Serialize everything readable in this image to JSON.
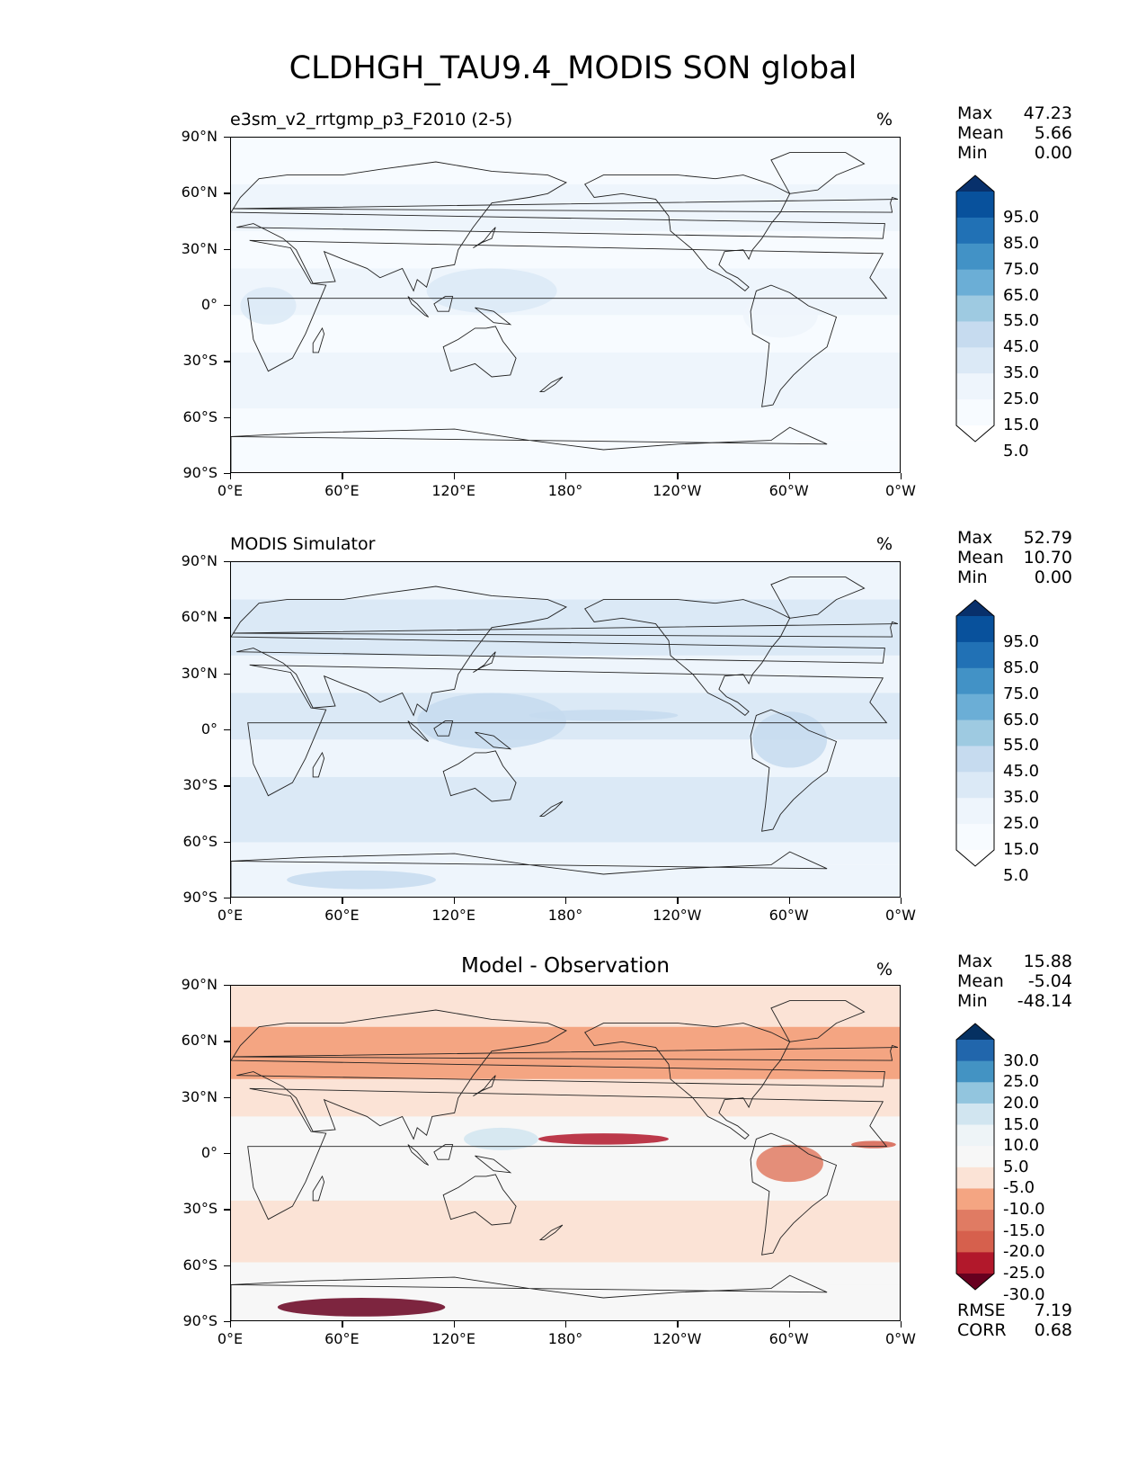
{
  "figure": {
    "title": "CLDHGH_TAU9.4_MODIS SON global"
  },
  "axes": {
    "lat_ticks": [
      "90°N",
      "60°N",
      "30°N",
      "0°",
      "30°S",
      "60°S",
      "90°S"
    ],
    "lon_ticks": [
      "0°E",
      "60°E",
      "120°E",
      "180°",
      "120°W",
      "60°W",
      "0°W"
    ]
  },
  "panels": [
    {
      "id": "test",
      "title": "e3sm_v2_rrtgmp_p3_F2010 (2-5)",
      "unit": "%",
      "stats": {
        "max_label": "Max",
        "max": "47.23",
        "mean_label": "Mean",
        "mean": "5.66",
        "min_label": "Min",
        "min": "0.00"
      },
      "colorbar": {
        "labels": [
          "95.0",
          "85.0",
          "75.0",
          "65.0",
          "55.0",
          "45.0",
          "35.0",
          "25.0",
          "15.0",
          "5.0"
        ],
        "colors": [
          "#08306b",
          "#08519c",
          "#2171b5",
          "#4292c6",
          "#6baed6",
          "#9ecae1",
          "#c6dbef",
          "#dbe9f6",
          "#eef5fc",
          "#f7fbff",
          "#ffffff"
        ]
      }
    },
    {
      "id": "reference",
      "title": "MODIS Simulator",
      "unit": "%",
      "stats": {
        "max_label": "Max",
        "max": "52.79",
        "mean_label": "Mean",
        "mean": "10.70",
        "min_label": "Min",
        "min": "0.00"
      },
      "colorbar": {
        "labels": [
          "95.0",
          "85.0",
          "75.0",
          "65.0",
          "55.0",
          "45.0",
          "35.0",
          "25.0",
          "15.0",
          "5.0"
        ],
        "colors": [
          "#08306b",
          "#08519c",
          "#2171b5",
          "#4292c6",
          "#6baed6",
          "#9ecae1",
          "#c6dbef",
          "#dbe9f6",
          "#eef5fc",
          "#f7fbff",
          "#ffffff"
        ]
      }
    },
    {
      "id": "difference",
      "title": "Model - Observation",
      "unit": "%",
      "stats": {
        "max_label": "Max",
        "max": "15.88",
        "mean_label": "Mean",
        "mean": "-5.04",
        "min_label": "Min",
        "min": "-48.14"
      },
      "colorbar": {
        "labels": [
          "30.0",
          "25.0",
          "20.0",
          "15.0",
          "10.0",
          "5.0",
          "-5.0",
          "-10.0",
          "-15.0",
          "-20.0",
          "-25.0",
          "-30.0"
        ],
        "colors": [
          "#053061",
          "#2166ac",
          "#4393c3",
          "#92c5de",
          "#d1e5f0",
          "#eef4f7",
          "#f7f7f7",
          "#fbe3d6",
          "#f4a582",
          "#e07b63",
          "#d6604d",
          "#b2182b",
          "#67001f"
        ]
      },
      "metrics": {
        "rmse_label": "RMSE",
        "rmse": "7.19",
        "corr_label": "CORR",
        "corr": "0.68"
      }
    }
  ]
}
